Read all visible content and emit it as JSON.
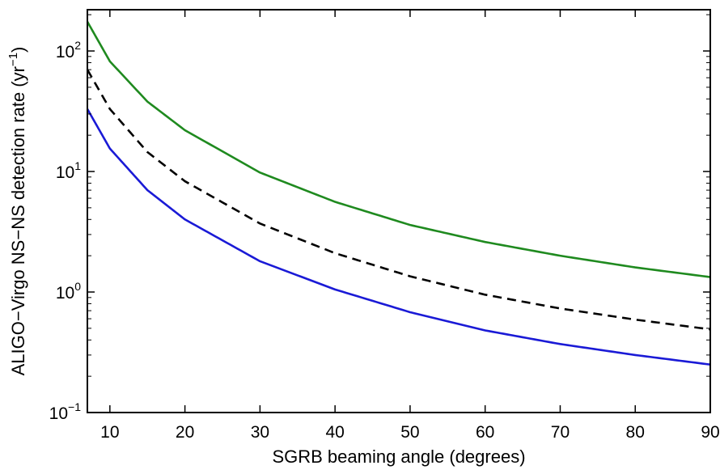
{
  "chart_data": {
    "type": "line",
    "title": "",
    "xlabel": "SGRB beaming angle (degrees)",
    "ylabel": {
      "main": "ALIGO−Virgo NS−NS detection rate (yr",
      "superscript": "−1",
      "close": ")"
    },
    "xlim": [
      7,
      90
    ],
    "ylim": [
      0.1,
      220
    ],
    "yscale": "log",
    "grid": false,
    "legend": "none",
    "x_ticks": [
      10,
      20,
      30,
      40,
      50,
      60,
      70,
      80,
      90
    ],
    "x_tick_labels": [
      "10",
      "20",
      "30",
      "40",
      "50",
      "60",
      "70",
      "80",
      "90"
    ],
    "y_ticks": [
      {
        "value": 0.1,
        "base": "10",
        "exp": "−1"
      },
      {
        "value": 1,
        "base": "10",
        "exp": "0"
      },
      {
        "value": 10,
        "base": "10",
        "exp": "1"
      },
      {
        "value": 100,
        "base": "10",
        "exp": "2"
      }
    ],
    "series": [
      {
        "color": "#1f8a1f",
        "dash": "solid",
        "x": [
          7,
          10,
          15,
          20,
          30,
          40,
          50,
          60,
          70,
          80,
          90
        ],
        "y": [
          175,
          82,
          38,
          22,
          9.8,
          5.6,
          3.6,
          2.6,
          2.0,
          1.6,
          1.33
        ]
      },
      {
        "color": "#000000",
        "dash": "dashed",
        "x": [
          7,
          10,
          15,
          20,
          30,
          40,
          50,
          60,
          70,
          80,
          90
        ],
        "y": [
          70,
          33,
          14.5,
          8.3,
          3.7,
          2.1,
          1.35,
          0.95,
          0.73,
          0.59,
          0.49
        ]
      },
      {
        "color": "#1a1ad6",
        "dash": "solid",
        "x": [
          7,
          10,
          15,
          20,
          30,
          40,
          50,
          60,
          70,
          80,
          90
        ],
        "y": [
          33,
          15.5,
          7.0,
          4.0,
          1.8,
          1.05,
          0.68,
          0.48,
          0.37,
          0.3,
          0.25
        ]
      }
    ]
  }
}
